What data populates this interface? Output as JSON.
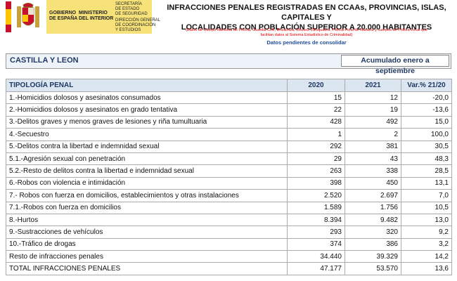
{
  "header": {
    "government": [
      "GOBIERNO",
      "DE ESPAÑA"
    ],
    "ministry": [
      "MINISTERIO",
      "DEL INTERIOR"
    ],
    "secretariat": [
      "SECRETARÍA",
      "DE ESTADO",
      "DE SEGURIDAD"
    ],
    "directorate": [
      "DIRECCIÓN GENERAL",
      "DE COORDINACIÓN",
      "Y ESTUDIOS"
    ],
    "title": [
      "INFRACCIONES PENALES REGISTRADAS EN CCAAs, PROVINCIAS, ISLAS, CAPITALES Y",
      "LOCALIDADES CON POBLACIÓN SUPERIOR A 20.000 HABITANTES"
    ],
    "note": [
      "(Datos de Cuerpo Nacional de Policía, Guardia Civil, Ertzaintza, Mossos d'Esquadra, Policía Foral de Navarra y cuerpos de Policía Local que",
      "facilitan datos al Sistema Estadístico de Criminalidad)"
    ],
    "status": "Datos pendientes de consolidar"
  },
  "region": "CASTILLA Y LEON",
  "period": "Acumulado enero a septiembre",
  "table": {
    "columns": [
      "TIPOLOGÍA PENAL",
      "2020",
      "2021",
      "Var.% 21/20"
    ],
    "rows": [
      [
        "1.-Homicidios dolosos y asesinatos consumados",
        "15",
        "12",
        "-20,0"
      ],
      [
        "2.-Homicidios dolosos y asesinatos en grado tentativa",
        "22",
        "19",
        "-13,6"
      ],
      [
        "3.-Delitos graves y menos graves de lesiones y riña tumultuaria",
        "428",
        "492",
        "15,0"
      ],
      [
        "4.-Secuestro",
        "1",
        "2",
        "100,0"
      ],
      [
        "5.-Delitos contra la libertad e indemnidad sexual",
        "292",
        "381",
        "30,5"
      ],
      [
        "5.1.-Agresión sexual con penetración",
        "29",
        "43",
        "48,3"
      ],
      [
        "5.2.-Resto de delitos contra la libertad e indemnidad sexual",
        "263",
        "338",
        "28,5"
      ],
      [
        "6.-Robos con violencia e intimidación",
        "398",
        "450",
        "13,1"
      ],
      [
        "7.- Robos con fuerza en domicilios, establecimientos y otras instalaciones",
        "2.520",
        "2.697",
        "7,0"
      ],
      [
        "7.1.-Robos con fuerza en domicilios",
        "1.589",
        "1.756",
        "10,5"
      ],
      [
        "8.-Hurtos",
        "8.394",
        "9.482",
        "13,0"
      ],
      [
        "9.-Sustracciones de vehículos",
        "293",
        "320",
        "9,2"
      ],
      [
        "10.-Tráfico de drogas",
        "374",
        "386",
        "3,2"
      ],
      [
        "Resto de infracciones penales",
        "34.440",
        "39.329",
        "14,2"
      ],
      [
        "TOTAL INFRACCIONES PENALES",
        "47.177",
        "53.570",
        "13,6"
      ]
    ]
  }
}
